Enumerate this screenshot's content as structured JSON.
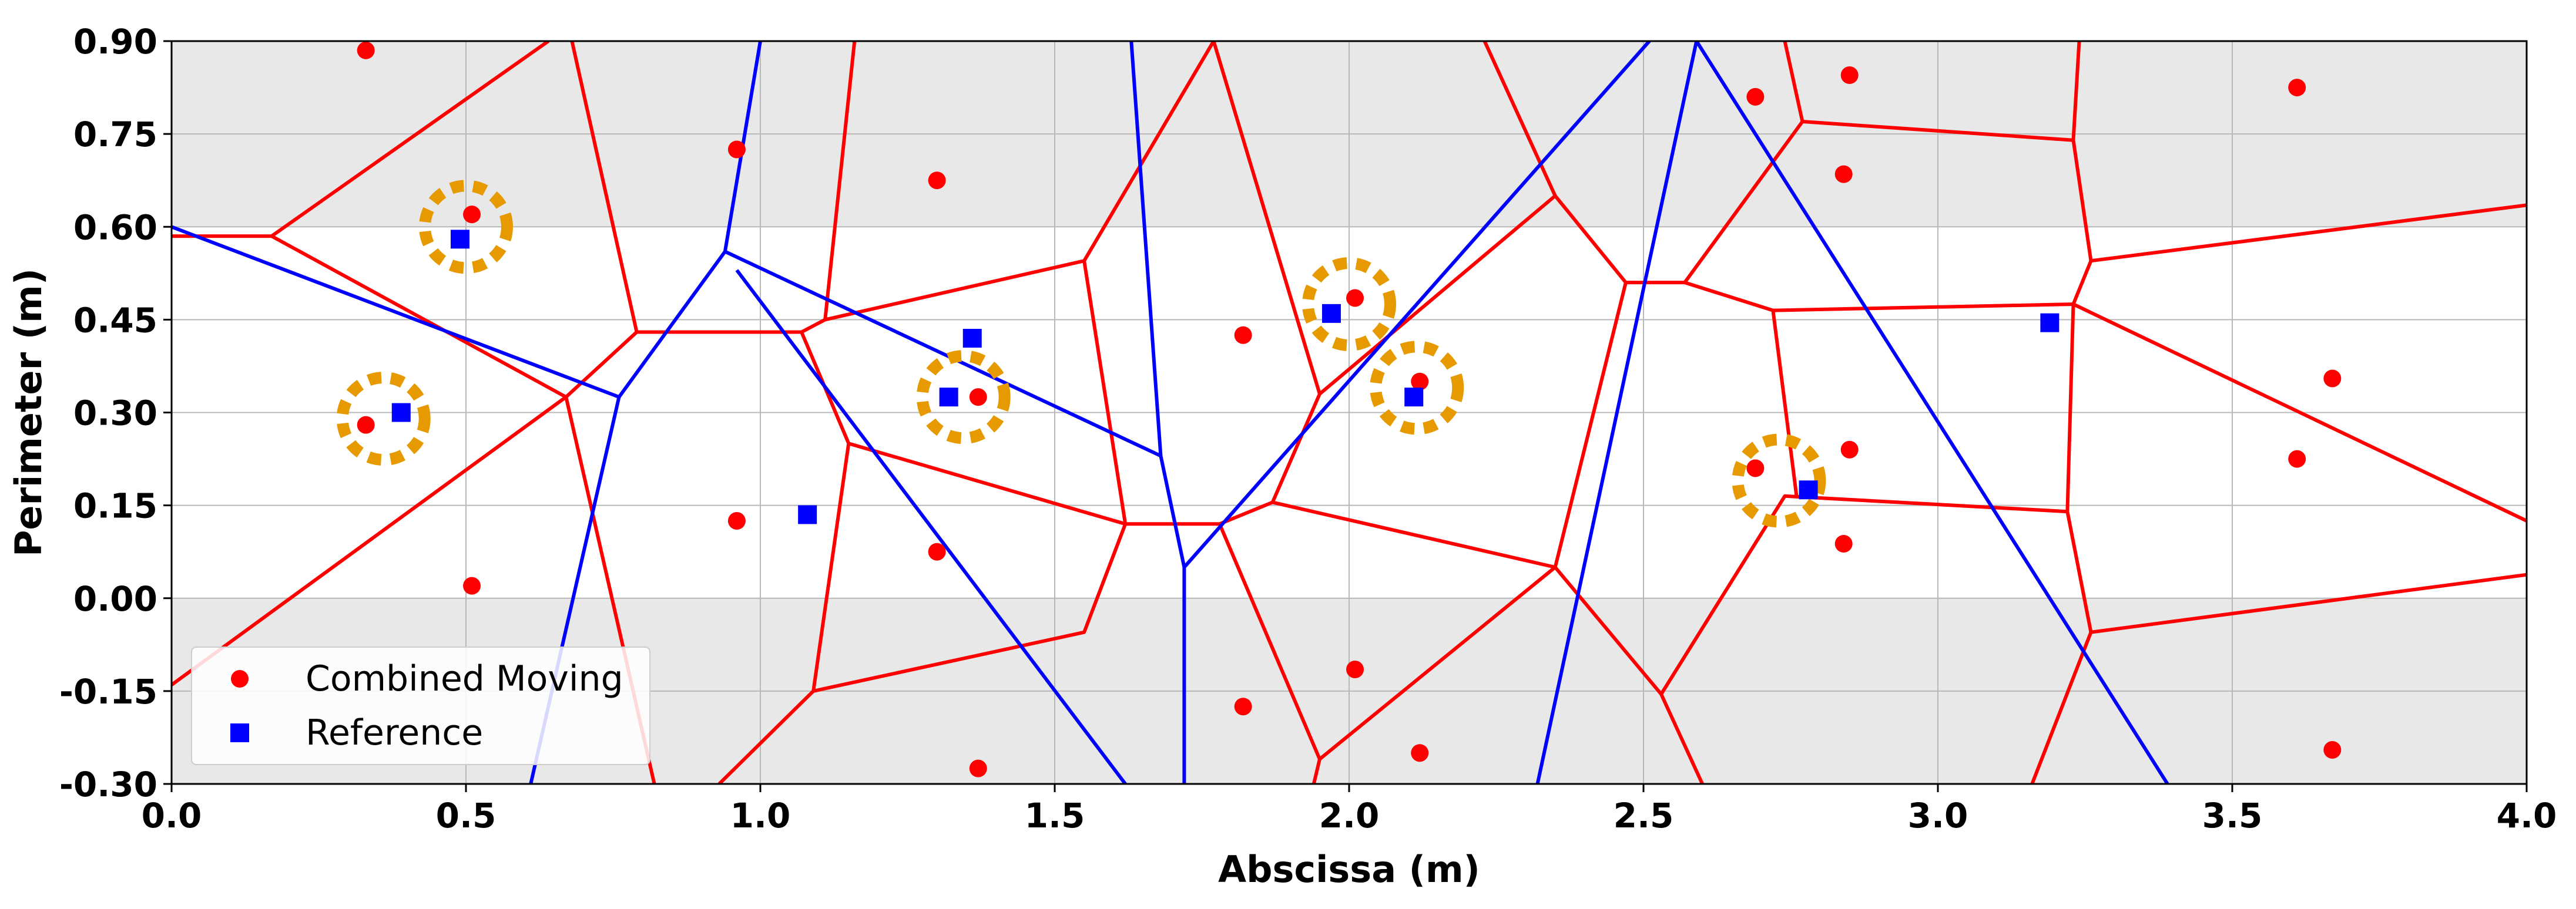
{
  "chart_data": {
    "type": "scatter",
    "title": "",
    "xlabel": "Abscissa (m)",
    "ylabel": "Perimeter (m)",
    "xlim": [
      0.0,
      4.0
    ],
    "ylim": [
      -0.3,
      0.9
    ],
    "xticks": [
      0.0,
      0.5,
      1.0,
      1.5,
      2.0,
      2.5,
      3.0,
      3.5,
      4.0
    ],
    "xtick_labels": [
      "0.0",
      "0.5",
      "1.0",
      "1.5",
      "2.0",
      "2.5",
      "3.0",
      "3.5",
      "4.0"
    ],
    "yticks": [
      -0.3,
      -0.15,
      0.0,
      0.15,
      0.3,
      0.45,
      0.6,
      0.75,
      0.9
    ],
    "ytick_labels": [
      "-0.30",
      "-0.15",
      "0.00",
      "0.15",
      "0.30",
      "0.45",
      "0.60",
      "0.75",
      "0.90"
    ],
    "grid": true,
    "shaded_bands": [
      {
        "y_from": 0.6,
        "y_to": 0.9,
        "color": "#e8e8e8"
      },
      {
        "y_from": -0.3,
        "y_to": 0.0,
        "color": "#e8e8e8"
      }
    ],
    "legend": {
      "location": "lower-left",
      "entries": [
        {
          "label": "Combined Moving",
          "marker": "circle",
          "color": "#ff0000"
        },
        {
          "label": "Reference",
          "marker": "square",
          "color": "#0000ff"
        }
      ]
    },
    "series": [
      {
        "name": "Combined Moving",
        "marker": "circle",
        "color": "#ff0000",
        "points": [
          [
            0.33,
            0.885
          ],
          [
            0.51,
            0.62
          ],
          [
            0.33,
            0.28
          ],
          [
            0.51,
            0.02
          ],
          [
            0.96,
            0.725
          ],
          [
            0.96,
            0.125
          ],
          [
            1.3,
            0.675
          ],
          [
            1.37,
            0.325
          ],
          [
            1.3,
            0.075
          ],
          [
            1.37,
            -0.275
          ],
          [
            1.82,
            0.425
          ],
          [
            1.82,
            -0.175
          ],
          [
            2.01,
            0.485
          ],
          [
            2.12,
            0.35
          ],
          [
            2.01,
            -0.115
          ],
          [
            2.12,
            -0.25
          ],
          [
            2.69,
            0.81
          ],
          [
            2.85,
            0.845
          ],
          [
            2.84,
            0.685
          ],
          [
            2.69,
            0.21
          ],
          [
            2.85,
            0.24
          ],
          [
            2.84,
            0.088
          ],
          [
            3.61,
            0.825
          ],
          [
            3.67,
            0.355
          ],
          [
            3.61,
            0.225
          ],
          [
            3.67,
            -0.245
          ]
        ]
      },
      {
        "name": "Reference",
        "marker": "square",
        "color": "#0000ff",
        "points": [
          [
            0.49,
            0.58
          ],
          [
            0.39,
            0.3
          ],
          [
            1.08,
            0.135
          ],
          [
            1.36,
            0.42
          ],
          [
            1.32,
            0.325
          ],
          [
            1.97,
            0.46
          ],
          [
            2.11,
            0.325
          ],
          [
            2.78,
            0.175
          ],
          [
            3.19,
            0.445
          ]
        ]
      }
    ],
    "highlight_rings": {
      "color": "#e69a00",
      "style": "dashed-circle",
      "centers": [
        [
          0.5,
          0.6
        ],
        [
          0.36,
          0.29
        ],
        [
          1.345,
          0.325
        ],
        [
          2.0,
          0.475
        ],
        [
          2.115,
          0.34
        ],
        [
          2.73,
          0.19
        ]
      ]
    },
    "voronoi_edges": {
      "red": {
        "color": "#ff0000",
        "polylines": [
          [
            [
              0.0,
              0.585
            ],
            [
              0.17,
              0.585
            ],
            [
              0.64,
              0.9
            ]
          ],
          [
            [
              0.17,
              0.585
            ],
            [
              0.67,
              0.325
            ],
            [
              0.79,
              0.43
            ],
            [
              1.07,
              0.43
            ],
            [
              1.11,
              0.45
            ],
            [
              1.55,
              0.545
            ],
            [
              1.62,
              0.12
            ],
            [
              1.78,
              0.12
            ],
            [
              1.87,
              0.155
            ],
            [
              2.35,
              0.05
            ],
            [
              2.53,
              -0.155
            ],
            [
              2.74,
              0.165
            ],
            [
              3.22,
              0.14
            ],
            [
              3.26,
              -0.055
            ],
            [
              4.0,
              0.038
            ]
          ],
          [
            [
              0.68,
              0.9
            ],
            [
              0.79,
              0.43
            ]
          ],
          [
            [
              0.0,
              -0.14
            ],
            [
              0.67,
              0.325
            ],
            [
              0.82,
              -0.3
            ]
          ],
          [
            [
              1.07,
              0.43
            ],
            [
              1.15,
              0.25
            ],
            [
              1.62,
              0.12
            ]
          ],
          [
            [
              1.15,
              0.25
            ],
            [
              1.09,
              -0.15
            ],
            [
              0.93,
              -0.3
            ]
          ],
          [
            [
              1.09,
              -0.15
            ],
            [
              1.55,
              -0.055
            ],
            [
              1.62,
              0.12
            ]
          ],
          [
            [
              1.11,
              0.45
            ],
            [
              1.16,
              0.9
            ]
          ],
          [
            [
              1.55,
              0.545
            ],
            [
              1.77,
              0.9
            ]
          ],
          [
            [
              1.77,
              0.9
            ],
            [
              1.95,
              0.33
            ],
            [
              1.87,
              0.155
            ]
          ],
          [
            [
              1.95,
              0.33
            ],
            [
              2.35,
              0.65
            ],
            [
              2.47,
              0.51
            ],
            [
              2.35,
              0.05
            ]
          ],
          [
            [
              2.35,
              0.65
            ],
            [
              2.23,
              0.9
            ]
          ],
          [
            [
              1.78,
              0.12
            ],
            [
              1.95,
              -0.26
            ],
            [
              2.35,
              0.05
            ]
          ],
          [
            [
              1.95,
              -0.26
            ],
            [
              1.94,
              -0.3
            ]
          ],
          [
            [
              2.47,
              0.51
            ],
            [
              2.57,
              0.51
            ],
            [
              2.72,
              0.465
            ],
            [
              3.23,
              0.475
            ]
          ],
          [
            [
              2.57,
              0.51
            ],
            [
              2.77,
              0.77
            ],
            [
              3.23,
              0.74
            ],
            [
              3.24,
              0.9
            ]
          ],
          [
            [
              2.77,
              0.77
            ],
            [
              2.74,
              0.9
            ]
          ],
          [
            [
              2.72,
              0.465
            ],
            [
              2.76,
              0.165
            ]
          ],
          [
            [
              3.23,
              0.74
            ],
            [
              3.26,
              0.545
            ],
            [
              4.0,
              0.635
            ]
          ],
          [
            [
              3.26,
              0.545
            ],
            [
              3.23,
              0.475
            ],
            [
              3.22,
              0.14
            ]
          ],
          [
            [
              3.23,
              0.475
            ],
            [
              4.0,
              0.125
            ]
          ],
          [
            [
              2.53,
              -0.155
            ],
            [
              2.6,
              -0.3
            ]
          ],
          [
            [
              3.26,
              -0.055
            ],
            [
              3.16,
              -0.3
            ]
          ]
        ]
      },
      "blue": {
        "color": "#0000ff",
        "polylines": [
          [
            [
              0.0,
              0.6
            ],
            [
              0.76,
              0.325
            ],
            [
              0.61,
              -0.3
            ]
          ],
          [
            [
              0.76,
              0.325
            ],
            [
              0.94,
              0.56
            ],
            [
              1.0,
              0.9
            ]
          ],
          [
            [
              0.94,
              0.56
            ],
            [
              1.68,
              0.23
            ],
            [
              1.72,
              0.05
            ],
            [
              1.72,
              -0.3
            ]
          ],
          [
            [
              1.68,
              0.23
            ],
            [
              1.63,
              0.9
            ]
          ],
          [
            [
              0.96,
              0.53
            ],
            [
              1.62,
              -0.3
            ]
          ],
          [
            [
              1.72,
              0.05
            ],
            [
              2.51,
              0.9
            ]
          ],
          [
            [
              2.32,
              -0.3
            ],
            [
              2.59,
              0.9
            ],
            [
              3.39,
              -0.3
            ]
          ]
        ]
      }
    }
  }
}
